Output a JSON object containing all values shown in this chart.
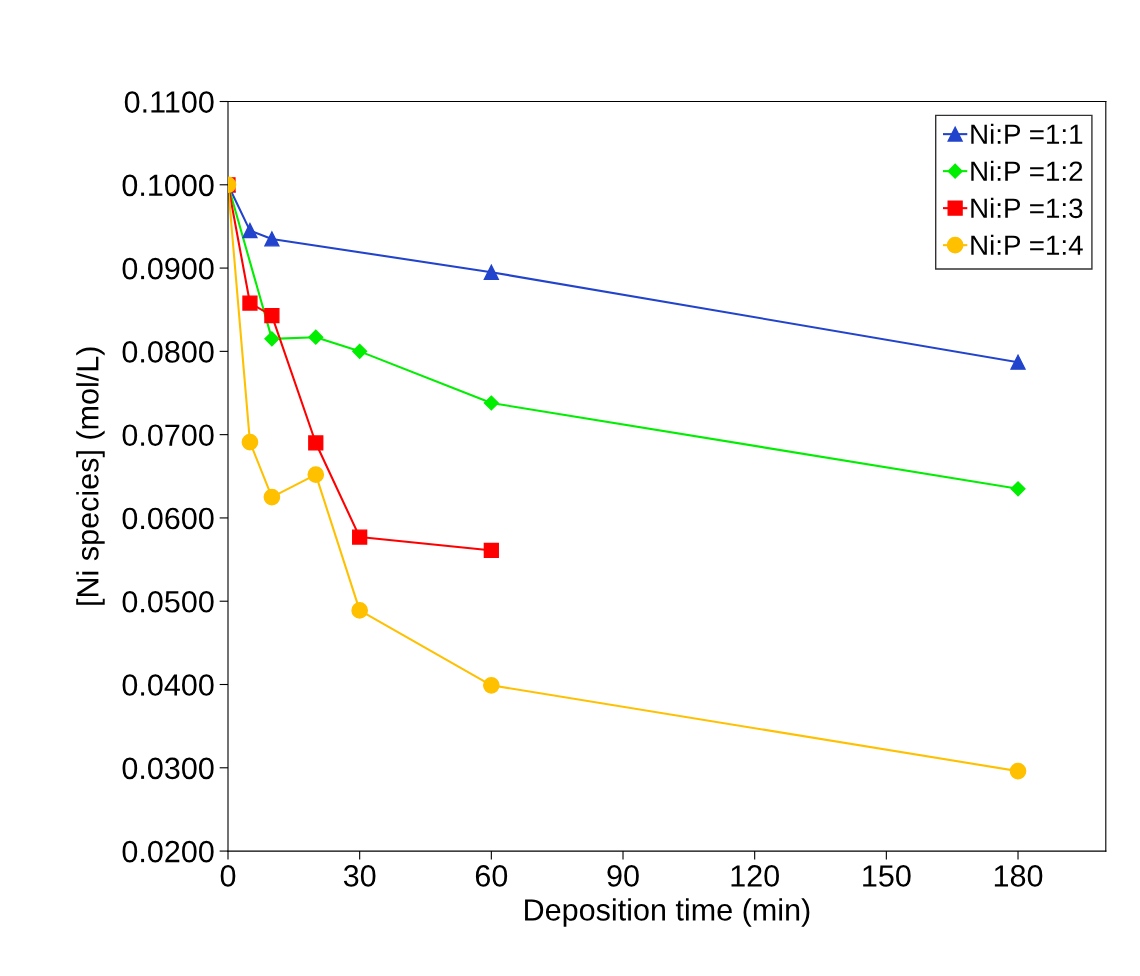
{
  "chart_data": {
    "type": "line",
    "xlabel": "Deposition time (min)",
    "ylabel": "[Ni species] (mol/L)",
    "xlim": [
      0,
      200
    ],
    "xticks": [
      0,
      30,
      60,
      90,
      120,
      150,
      180
    ],
    "ylim": [
      0.02,
      0.11
    ],
    "yticks": [
      {
        "value": 0.02,
        "label": "0.0200"
      },
      {
        "value": 0.03,
        "label": "0.0300"
      },
      {
        "value": 0.04,
        "label": "0.0400"
      },
      {
        "value": 0.05,
        "label": "0.0500"
      },
      {
        "value": 0.06,
        "label": "0.0600"
      },
      {
        "value": 0.07,
        "label": "0.0700"
      },
      {
        "value": 0.08,
        "label": "0.0800"
      },
      {
        "value": 0.09,
        "label": "0.0900"
      },
      {
        "value": 0.1,
        "label": "0.1000"
      },
      {
        "value": 0.11,
        "label": "0.1100"
      }
    ],
    "grid": false,
    "legend": "top right",
    "series": [
      {
        "name": "Ni:P =1:1",
        "color": "#2244cc",
        "marker": "triangle",
        "x": [
          0,
          5,
          10,
          60,
          180
        ],
        "values": [
          0.1,
          0.0945,
          0.0935,
          0.0895,
          0.0787
        ]
      },
      {
        "name": "Ni:P =1:2",
        "color": "#00ee00",
        "marker": "diamond",
        "x": [
          0,
          10,
          20,
          30,
          60,
          180
        ],
        "values": [
          0.1,
          0.0815,
          0.0817,
          0.08,
          0.0738,
          0.0635
        ]
      },
      {
        "name": "Ni:P =1:3",
        "color": "#ff0000",
        "marker": "square",
        "x": [
          0,
          5,
          10,
          20,
          30,
          60
        ],
        "values": [
          0.1,
          0.0858,
          0.0843,
          0.069,
          0.0577,
          0.0561
        ]
      },
      {
        "name": "Ni:P =1:4",
        "color": "#ffc000",
        "marker": "circle",
        "x": [
          0,
          5,
          10,
          20,
          30,
          60,
          180
        ],
        "values": [
          0.1,
          0.0691,
          0.0625,
          0.0652,
          0.0489,
          0.0399,
          0.0296
        ]
      }
    ]
  }
}
